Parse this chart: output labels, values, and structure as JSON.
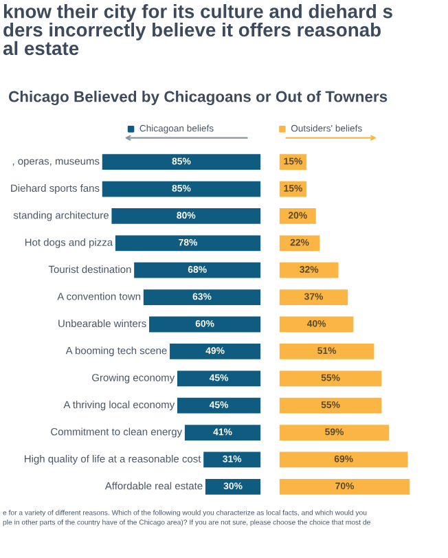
{
  "chart_data": [
    {
      "type": "bar",
      "orientation": "horizontal",
      "title": "know their city for its culture and diehard s\nders incorrectly believe it offers reasonab\nal estate",
      "subtitle": "Chicago Believed by Chicagoans or Out of Towners",
      "categories": [
        ", operas, museums",
        "Diehard sports fans",
        "standing architecture",
        "Hot dogs and pizza",
        "Tourist destination",
        "A convention town",
        "Unbearable winters",
        "A booming tech scene",
        "Growing economy",
        "A thriving local economy",
        "Commitment to clean energy",
        "High quality of life at a reasonable cost",
        "Affordable real estate"
      ],
      "series": [
        {
          "name": "Chicagoan beliefs",
          "color": "#0f5c80",
          "values": [
            85,
            85,
            80,
            78,
            68,
            63,
            60,
            49,
            45,
            45,
            41,
            31,
            30
          ],
          "value_labels": [
            "85%",
            "85%",
            "80%",
            "78%",
            "68%",
            "63%",
            "60%",
            "49%",
            "45%",
            "45%",
            "41%",
            "31%",
            "30%"
          ]
        }
      ],
      "tick_labels": false,
      "legend": "top",
      "annotations": [
        "e for a variety of different reasons. Which of the following would you characterize as local facts, and which would you",
        "ple in other parts of the country have of the Chicago area)? If you are not sure, please choose the choice that most de"
      ]
    },
    {
      "type": "bar",
      "orientation": "horizontal",
      "categories": [
        null,
        null,
        null,
        null,
        null,
        null,
        null,
        null,
        null,
        null,
        null,
        null,
        null
      ],
      "series": [
        {
          "name": "Outsiders' beliefs",
          "color": "#fbb545",
          "values": [
            15,
            15,
            20,
            22,
            32,
            37,
            40,
            51,
            55,
            55,
            59,
            69,
            70
          ],
          "value_labels": [
            "15%",
            "15%",
            "20%",
            "22%",
            "32%",
            "37%",
            "40%",
            "51%",
            "55%",
            "55%",
            "59%",
            "69%",
            "70%"
          ]
        }
      ],
      "tick_labels": false,
      "legend": "top"
    }
  ]
}
